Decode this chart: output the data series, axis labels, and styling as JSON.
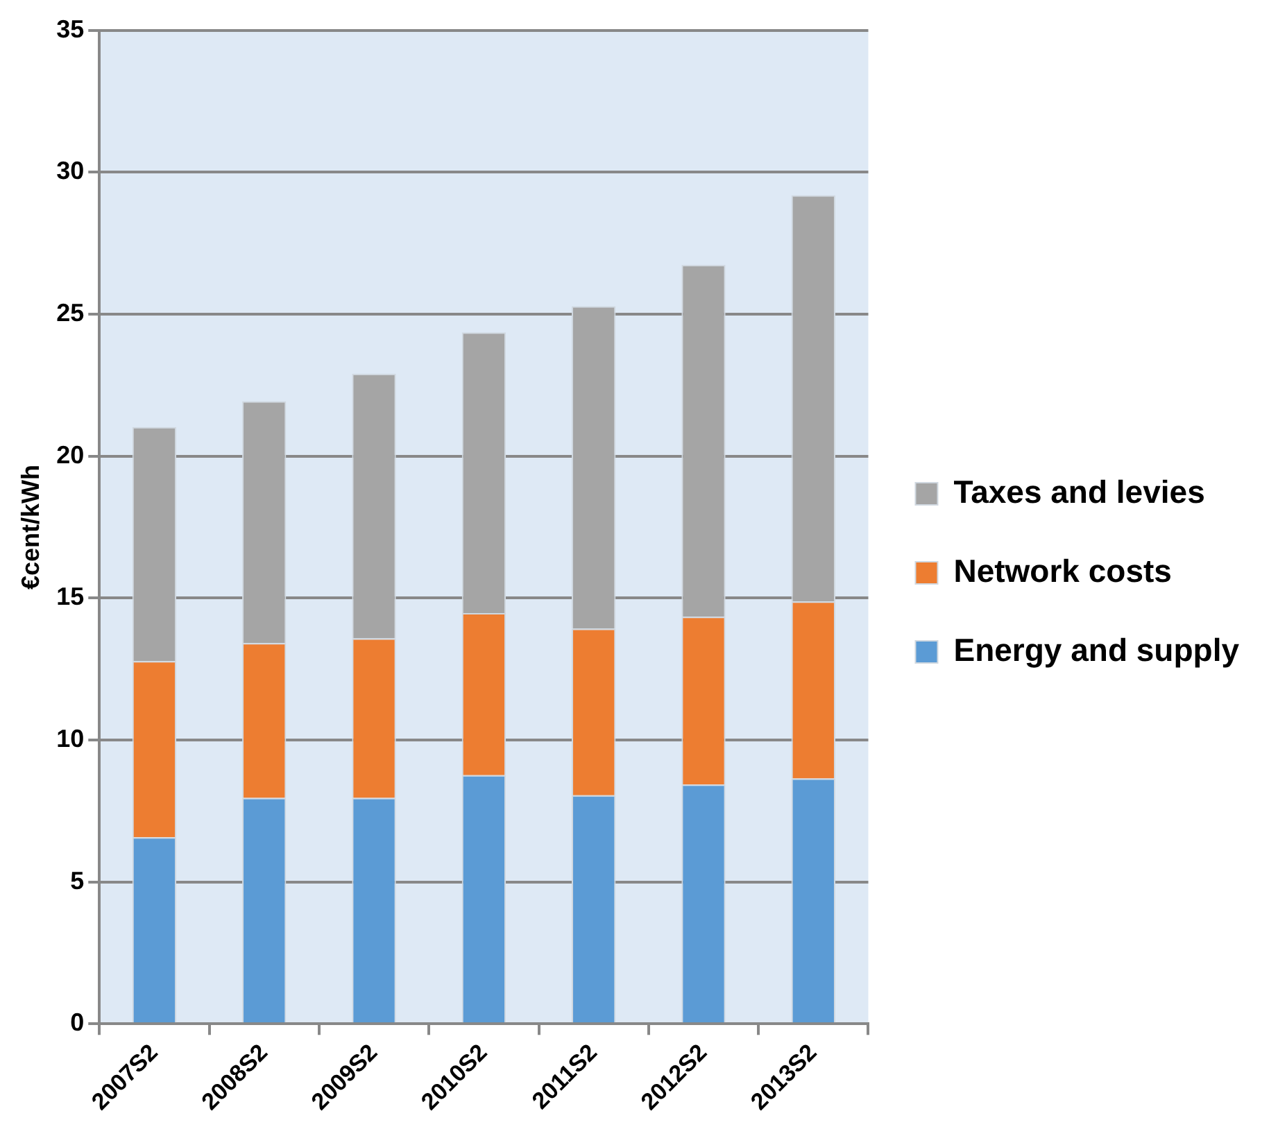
{
  "chart_data": {
    "type": "bar",
    "ylabel": "€cent/kWh",
    "categories": [
      "2007S2",
      "2008S2",
      "2009S2",
      "2010S2",
      "2011S2",
      "2012S2",
      "2013S2"
    ],
    "series": [
      {
        "name": "Energy and supply",
        "color": "#5b9bd5",
        "values": [
          6.57,
          7.96,
          7.96,
          8.76,
          8.05,
          8.43,
          8.64
        ]
      },
      {
        "name": "Network costs",
        "color": "#ed7d31",
        "values": [
          6.21,
          5.45,
          5.62,
          5.71,
          5.87,
          5.91,
          6.24
        ]
      },
      {
        "name": "Taxes and levies",
        "color": "#a5a5a5",
        "values": [
          8.24,
          8.52,
          9.32,
          9.89,
          11.36,
          12.39,
          14.31
        ]
      }
    ],
    "stacked": true,
    "ylim": [
      0,
      35
    ],
    "yticks": [
      0,
      5,
      10,
      15,
      20,
      25,
      30,
      35
    ],
    "grid": "y",
    "legend": "right"
  }
}
